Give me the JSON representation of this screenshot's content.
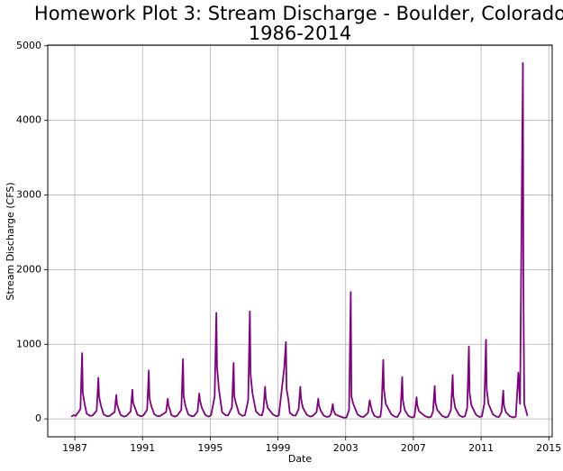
{
  "chart_data": {
    "type": "line",
    "title": [
      "Homework Plot 3: Stream Discharge - Boulder, Colorado",
      "1986-2014"
    ],
    "x_label": "Date",
    "y_label": "Stream Discharge (CFS)",
    "color": "#800080",
    "grid": true,
    "xlim": [
      1985.4,
      2015.2
    ],
    "ylim": [
      -240,
      5010
    ],
    "xticks": [
      1987,
      1991,
      1995,
      1999,
      2003,
      2007,
      2011,
      2015
    ],
    "yticks": [
      0,
      1000,
      2000,
      3000,
      4000,
      5000
    ],
    "x": [
      1986.79,
      1986.95,
      1987.05,
      1987.33,
      1987.43,
      1987.47,
      1987.58,
      1987.7,
      1987.9,
      1988.05,
      1988.29,
      1988.39,
      1988.43,
      1988.54,
      1988.7,
      1988.9,
      1989.05,
      1989.35,
      1989.45,
      1989.49,
      1989.6,
      1989.7,
      1989.9,
      1990.05,
      1990.3,
      1990.4,
      1990.44,
      1990.55,
      1990.7,
      1990.9,
      1991.05,
      1991.27,
      1991.37,
      1991.41,
      1991.52,
      1991.7,
      1991.9,
      1992.05,
      1992.39,
      1992.49,
      1992.53,
      1992.64,
      1992.7,
      1992.9,
      1993.05,
      1993.29,
      1993.39,
      1993.43,
      1993.54,
      1993.7,
      1993.9,
      1994.05,
      1994.25,
      1994.35,
      1994.39,
      1994.5,
      1994.7,
      1994.9,
      1995.05,
      1995.26,
      1995.36,
      1995.4,
      1995.51,
      1995.7,
      1995.9,
      1996.05,
      1996.28,
      1996.38,
      1996.42,
      1996.53,
      1996.7,
      1996.9,
      1997.05,
      1997.24,
      1997.34,
      1997.38,
      1997.49,
      1997.7,
      1997.9,
      1998.05,
      1998.14,
      1998.24,
      1998.28,
      1998.39,
      1998.7,
      1998.9,
      1999.05,
      1999.37,
      1999.47,
      1999.51,
      1999.62,
      1999.7,
      1999.9,
      2000.05,
      2000.22,
      2000.32,
      2000.36,
      2000.47,
      2000.7,
      2000.9,
      2001.05,
      2001.28,
      2001.38,
      2001.42,
      2001.53,
      2001.7,
      2001.9,
      2002.05,
      2002.14,
      2002.24,
      2002.28,
      2002.39,
      2002.7,
      2002.9,
      2003.05,
      2003.2,
      2003.3,
      2003.34,
      2003.45,
      2003.7,
      2003.9,
      2004.05,
      2004.32,
      2004.42,
      2004.46,
      2004.57,
      2004.7,
      2004.9,
      2005.05,
      2005.12,
      2005.22,
      2005.26,
      2005.37,
      2005.7,
      2005.9,
      2006.05,
      2006.24,
      2006.34,
      2006.38,
      2006.49,
      2006.7,
      2006.9,
      2007.05,
      2007.09,
      2007.19,
      2007.23,
      2007.34,
      2007.7,
      2007.9,
      2008.05,
      2008.16,
      2008.26,
      2008.3,
      2008.41,
      2008.7,
      2008.9,
      2009.05,
      2009.22,
      2009.32,
      2009.36,
      2009.47,
      2009.7,
      2009.9,
      2010.05,
      2010.18,
      2010.28,
      2010.32,
      2010.43,
      2010.7,
      2010.9,
      2011.05,
      2011.19,
      2011.29,
      2011.33,
      2011.44,
      2011.7,
      2011.9,
      2012.05,
      2012.21,
      2012.31,
      2012.35,
      2012.46,
      2012.7,
      2012.9,
      2013.05,
      2013.2,
      2013.3,
      2013.47,
      2013.5,
      2013.55,
      2013.74
    ],
    "values": [
      30,
      50,
      40,
      130,
      880,
      350,
      200,
      70,
      40,
      45,
      110,
      550,
      300,
      180,
      60,
      35,
      40,
      90,
      320,
      200,
      120,
      55,
      30,
      40,
      100,
      390,
      220,
      150,
      55,
      35,
      45,
      120,
      650,
      280,
      170,
      60,
      35,
      40,
      90,
      270,
      180,
      110,
      50,
      30,
      45,
      120,
      800,
      300,
      170,
      60,
      35,
      40,
      100,
      340,
      250,
      150,
      55,
      30,
      50,
      300,
      1420,
      700,
      400,
      90,
      50,
      45,
      150,
      750,
      300,
      200,
      70,
      40,
      50,
      250,
      1440,
      600,
      350,
      100,
      55,
      45,
      120,
      430,
      280,
      150,
      60,
      35,
      45,
      680,
      1030,
      400,
      250,
      80,
      45,
      45,
      130,
      430,
      280,
      150,
      55,
      30,
      40,
      90,
      270,
      180,
      110,
      45,
      25,
      35,
      70,
      200,
      120,
      60,
      30,
      15,
      20,
      120,
      1700,
      300,
      200,
      60,
      30,
      25,
      80,
      250,
      200,
      100,
      40,
      20,
      30,
      150,
      790,
      400,
      200,
      60,
      30,
      25,
      100,
      560,
      250,
      120,
      40,
      20,
      25,
      80,
      290,
      180,
      100,
      35,
      20,
      30,
      100,
      440,
      220,
      120,
      40,
      20,
      30,
      120,
      590,
      300,
      150,
      50,
      25,
      35,
      150,
      970,
      350,
      180,
      55,
      25,
      35,
      200,
      1060,
      400,
      200,
      60,
      30,
      25,
      90,
      380,
      180,
      90,
      35,
      20,
      30,
      620,
      200,
      4770,
      1770,
      200,
      40
    ]
  }
}
